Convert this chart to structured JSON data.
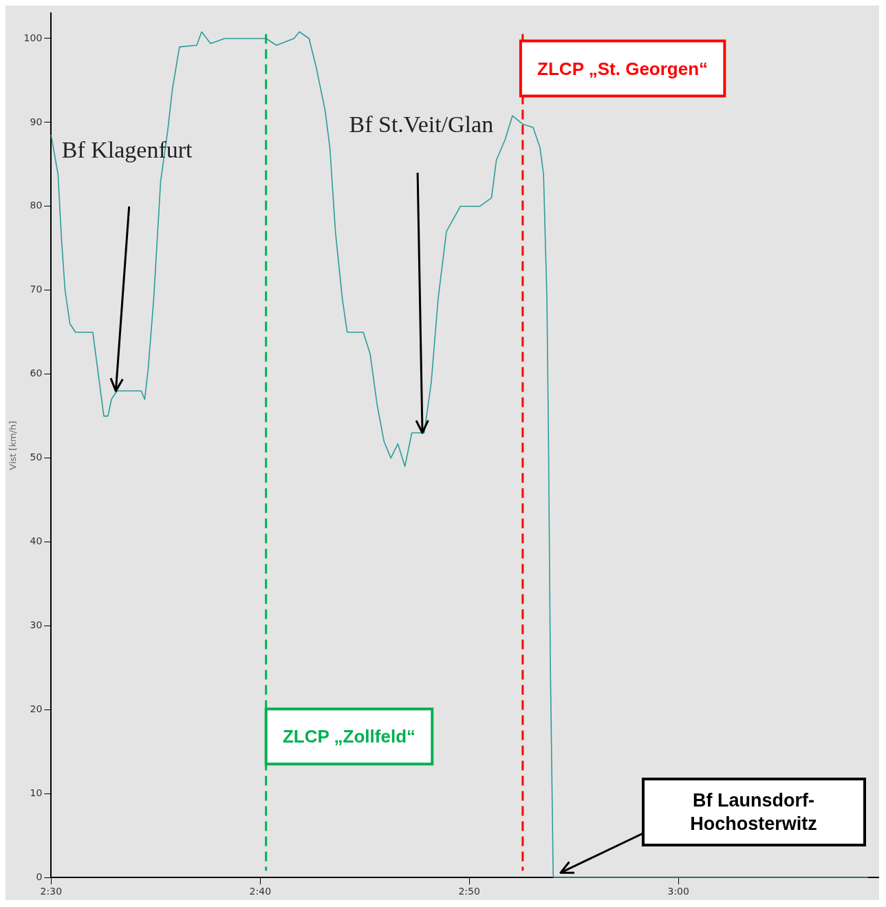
{
  "chart_data": {
    "type": "line",
    "ylabel": "Vist [km/h]",
    "x": [
      2.5,
      2.5055,
      2.5083,
      2.5111,
      2.515,
      2.5194,
      2.5332,
      2.5376,
      2.542,
      2.5453,
      2.5481,
      2.5525,
      2.5718,
      2.5746,
      2.5774,
      2.5818,
      2.5873,
      2.5929,
      2.5967,
      2.6023,
      2.6161,
      2.62,
      2.6271,
      2.6382,
      2.6713,
      2.6796,
      2.6935,
      2.6979,
      2.7056,
      2.7111,
      2.7183,
      2.7222,
      2.7266,
      2.7321,
      2.736,
      2.7488,
      2.7543,
      2.7598,
      2.7653,
      2.7708,
      2.7764,
      2.782,
      2.7875,
      2.7974,
      2.803,
      2.8085,
      2.8151,
      2.8262,
      2.8417,
      2.851,
      2.8549,
      2.862,
      2.8677,
      2.8759,
      2.8842,
      2.8897,
      2.8925,
      2.8952,
      2.8964,
      2.898,
      2.9002,
      2.9008,
      3.1512
    ],
    "series": [
      {
        "color": "#2a9d9a",
        "values": [
          88.5,
          83.8,
          76,
          70,
          66,
          65,
          65,
          60,
          55,
          55,
          57,
          58,
          58,
          57,
          60.7,
          69,
          83,
          89,
          94,
          99,
          99.2,
          100.8,
          99.4,
          100,
          100,
          99.2,
          100,
          100.8,
          100,
          96.7,
          91.5,
          87,
          77,
          69,
          65,
          65,
          62.4,
          56.4,
          52,
          50,
          51.7,
          49,
          53,
          53,
          59,
          69,
          77,
          80,
          80,
          81,
          85.5,
          88,
          90.8,
          89.8,
          89.4,
          87,
          83.8,
          69,
          53,
          24.7,
          0.3,
          0,
          0
        ]
      }
    ],
    "xlim": [
      2.5,
      3.16
    ],
    "xticks": [
      {
        "value": 2.5,
        "label": "2:30"
      },
      {
        "value": 2.6667,
        "label": "2:40"
      },
      {
        "value": 2.8333,
        "label": "2:50"
      },
      {
        "value": 3,
        "label": "3:00"
      }
    ],
    "ylim": [
      0,
      103
    ],
    "yticks": [
      0,
      10,
      20,
      30,
      40,
      50,
      60,
      70,
      80,
      90,
      100
    ],
    "grid": false,
    "legend": false,
    "marker": "none",
    "line_style": "solid",
    "ref_lines": [
      {
        "axis": "x",
        "value": 2.6713,
        "label": "ZLCP „Zollfeld“",
        "color": "#00b050",
        "line_style": "dashed"
      },
      {
        "axis": "x",
        "value": 2.8759,
        "label": "ZLCP „St. Georgen“",
        "color": "#ff0000",
        "line_style": "dashed"
      }
    ],
    "annotations": [
      "Bf Klagenfurt",
      "Bf St.Veit/Glan",
      "Bf Launsdorf-\nHochosterwitz"
    ]
  }
}
